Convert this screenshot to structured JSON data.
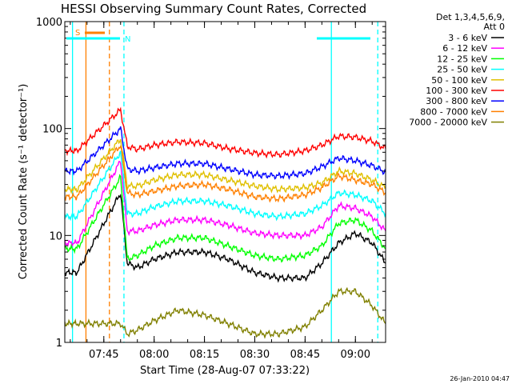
{
  "chart_data": {
    "type": "line",
    "title": "HESSI Observing Summary Count Rates, Corrected",
    "xlabel": "Start Time (28-Aug-07 07:33:22)",
    "ylabel": "Corrected Count Rate (s⁻¹ detector⁻¹)",
    "x_start": "07:33:22",
    "x_end": "09:09:00",
    "x_scale": "time",
    "x_ticks": [
      "07:45",
      "08:00",
      "08:15",
      "08:30",
      "08:45",
      "09:00"
    ],
    "y_scale": "log",
    "ylim": [
      1,
      1000
    ],
    "y_ticks": [
      "1",
      "10",
      "100",
      "1000"
    ],
    "grid": false,
    "legend": {
      "placement": "right",
      "header_line1": "Det 1,3,4,5,6,9,",
      "header_line2": "Att 0"
    },
    "annotations": [
      {
        "label": "S",
        "color": "#ff8000"
      },
      {
        "label": "N",
        "color": "#00ffff"
      }
    ],
    "bands": [
      {
        "name": "N (night) start",
        "time": "07:35:40",
        "color": "#00ffff",
        "style": "solid"
      },
      {
        "name": "N (night) end",
        "time": "07:51:00",
        "color": "#00ffff",
        "style": "dashed"
      },
      {
        "name": "N (night) start",
        "time": "08:52:50",
        "color": "#00ffff",
        "style": "solid"
      },
      {
        "name": "N (night) end",
        "time": "09:06:40",
        "color": "#00ffff",
        "style": "dashed"
      },
      {
        "name": "S (SAA) start",
        "time": "07:39:40",
        "color": "#ff8000",
        "style": "solid"
      },
      {
        "name": "S (SAA) end",
        "time": "07:46:40",
        "color": "#ff8000",
        "style": "dashed"
      }
    ],
    "x": [
      "07:33:22",
      "07:37:00",
      "07:50:00",
      "07:52:00",
      "07:55:00",
      "08:00:00",
      "08:07:00",
      "08:15:00",
      "08:22:00",
      "08:30:00",
      "08:37:00",
      "08:45:00",
      "08:50:00",
      "08:55:00",
      "09:00:00",
      "09:05:00",
      "09:09:00"
    ],
    "series": [
      {
        "name": "3 - 6 keV",
        "color": "#000000",
        "values": [
          4.5,
          4.5,
          25,
          5.5,
          5.0,
          6.0,
          7.0,
          7.0,
          6.0,
          4.5,
          4.0,
          4.0,
          5.5,
          8.5,
          10.5,
          8.5,
          5.5
        ]
      },
      {
        "name": "6 - 12 keV",
        "color": "#ff00ff",
        "values": [
          8.5,
          8.5,
          50,
          11,
          11,
          12.5,
          14,
          14,
          12.5,
          10.5,
          10,
          10,
          12,
          19,
          18,
          15,
          11
        ]
      },
      {
        "name": "12 - 25 keV",
        "color": "#00ff00",
        "values": [
          7.5,
          7.5,
          35,
          6.0,
          6.5,
          8.0,
          9.5,
          9.5,
          8.0,
          6.5,
          6.0,
          6.5,
          8.0,
          13,
          14,
          11,
          7.5
        ]
      },
      {
        "name": "25 - 50 keV",
        "color": "#00ffff",
        "values": [
          15,
          15,
          60,
          16,
          16,
          18.5,
          21,
          21,
          19,
          16,
          15,
          16,
          19,
          25,
          24,
          21,
          16
        ]
      },
      {
        "name": "50 - 100 keV",
        "color": "#e0c000",
        "values": [
          27,
          27,
          80,
          29,
          29,
          33,
          37,
          37,
          33,
          29,
          27,
          28,
          31,
          40,
          38,
          33,
          28
        ]
      },
      {
        "name": "100 - 300 keV",
        "color": "#ff0000",
        "values": [
          62,
          62,
          150,
          68,
          64,
          70,
          75,
          73,
          65,
          59,
          57,
          62,
          70,
          85,
          83,
          76,
          65
        ]
      },
      {
        "name": "300 - 800 keV",
        "color": "#0000ff",
        "values": [
          40,
          40,
          100,
          42,
          40,
          43,
          47,
          47,
          42,
          37,
          36,
          38,
          44,
          53,
          50,
          45,
          39
        ]
      },
      {
        "name": "800 - 7000 keV",
        "color": "#ff8000",
        "values": [
          23,
          23,
          70,
          25,
          24,
          26,
          29,
          30,
          27,
          23,
          22,
          24,
          28,
          36,
          33,
          30,
          25
        ]
      },
      {
        "name": "7000 - 20000 keV",
        "color": "#808000",
        "values": [
          1.5,
          1.5,
          1.5,
          1.2,
          1.3,
          1.6,
          2.0,
          1.8,
          1.5,
          1.2,
          1.2,
          1.4,
          2.0,
          3.0,
          3.0,
          2.2,
          1.5
        ]
      }
    ]
  },
  "legend_entries": [
    "3 - 6 keV",
    "6 - 12 keV",
    "12 - 25 keV",
    "25 - 50 keV",
    "50 - 100 keV",
    "100 - 300 keV",
    "300 - 800 keV",
    "800 - 7000 keV",
    "7000 - 20000 keV"
  ],
  "timestamp": "26-Jan-2010 04:47"
}
